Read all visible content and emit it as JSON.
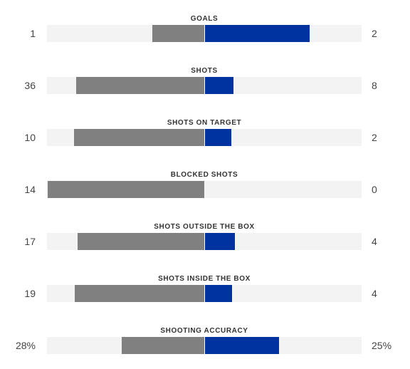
{
  "colors": {
    "home_bar": "#808080",
    "away_bar": "#0033a0",
    "track": "#f3f3f3"
  },
  "stats": [
    {
      "label": "GOALS",
      "home": "1",
      "away": "2",
      "home_share": 0.333,
      "away_share": 0.667
    },
    {
      "label": "SHOTS",
      "home": "36",
      "away": "8",
      "home_share": 0.818,
      "away_share": 0.182
    },
    {
      "label": "SHOTS ON TARGET",
      "home": "10",
      "away": "2",
      "home_share": 0.833,
      "away_share": 0.167
    },
    {
      "label": "BLOCKED SHOTS",
      "home": "14",
      "away": "0",
      "home_share": 1.0,
      "away_share": 0.0
    },
    {
      "label": "SHOTS OUTSIDE THE BOX",
      "home": "17",
      "away": "4",
      "home_share": 0.81,
      "away_share": 0.19
    },
    {
      "label": "SHOTS INSIDE THE BOX",
      "home": "19",
      "away": "4",
      "home_share": 0.826,
      "away_share": 0.174
    },
    {
      "label": "SHOOTING ACCURACY",
      "home": "28%",
      "away": "25%",
      "home_share": 0.528,
      "away_share": 0.472
    }
  ]
}
